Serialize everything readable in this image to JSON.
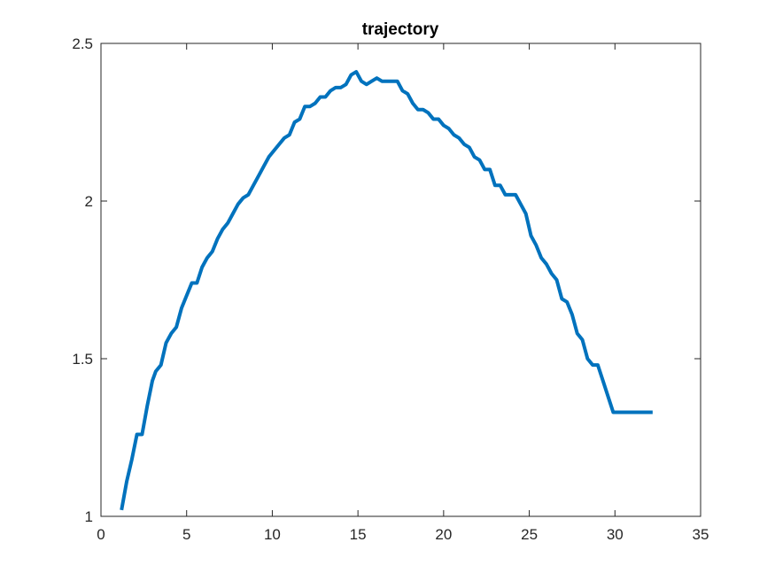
{
  "chart_data": {
    "type": "line",
    "title": "trajectory",
    "xlabel": "",
    "ylabel": "",
    "xlim": [
      0,
      35
    ],
    "ylim": [
      1,
      2.5
    ],
    "x_ticks": [
      "0",
      "5",
      "10",
      "15",
      "20",
      "25",
      "30",
      "35"
    ],
    "y_ticks": [
      "1",
      "1.5",
      "2",
      "2.5"
    ],
    "grid": false,
    "line_color": "#0072BD",
    "series": [
      {
        "x": [
          1.2,
          1.5,
          1.8,
          2.1,
          2.4,
          2.7,
          3.0,
          3.2,
          3.5,
          3.8,
          4.1,
          4.4,
          4.7,
          5.0,
          5.3,
          5.6,
          5.9,
          6.2,
          6.5,
          6.8,
          7.1,
          7.4,
          7.7,
          8.0,
          8.3,
          8.6,
          8.9,
          9.2,
          9.5,
          9.8,
          10.1,
          10.4,
          10.7,
          11.0,
          11.3,
          11.6,
          11.9,
          12.2,
          12.5,
          12.8,
          13.1,
          13.4,
          13.7,
          14.0,
          14.3,
          14.6,
          14.9,
          15.2,
          15.5,
          15.8,
          16.1,
          16.4,
          16.7,
          17.0,
          17.3,
          17.6,
          17.9,
          18.2,
          18.5,
          18.8,
          19.1,
          19.4,
          19.7,
          20.0,
          20.3,
          20.6,
          20.9,
          21.2,
          21.5,
          21.8,
          22.1,
          22.4,
          22.7,
          23.0,
          23.3,
          23.6,
          23.9,
          24.2,
          24.5,
          24.8,
          25.1,
          25.4,
          25.7,
          26.0,
          26.3,
          26.6,
          26.9,
          27.2,
          27.5,
          27.8,
          28.1,
          28.4,
          28.7,
          29.0,
          29.3,
          29.6,
          29.9,
          30.2,
          30.5,
          30.8,
          31.1,
          31.4,
          31.7,
          32.0,
          32.2
        ],
        "y": [
          1.02,
          1.11,
          1.18,
          1.26,
          1.26,
          1.35,
          1.43,
          1.46,
          1.48,
          1.55,
          1.58,
          1.6,
          1.66,
          1.7,
          1.74,
          1.74,
          1.79,
          1.82,
          1.84,
          1.88,
          1.91,
          1.93,
          1.96,
          1.99,
          2.01,
          2.02,
          2.05,
          2.08,
          2.11,
          2.14,
          2.16,
          2.18,
          2.2,
          2.21,
          2.25,
          2.26,
          2.3,
          2.3,
          2.31,
          2.33,
          2.33,
          2.35,
          2.36,
          2.36,
          2.37,
          2.4,
          2.41,
          2.38,
          2.37,
          2.38,
          2.39,
          2.38,
          2.38,
          2.38,
          2.38,
          2.35,
          2.34,
          2.31,
          2.29,
          2.29,
          2.28,
          2.26,
          2.26,
          2.24,
          2.23,
          2.21,
          2.2,
          2.18,
          2.17,
          2.14,
          2.13,
          2.1,
          2.1,
          2.05,
          2.05,
          2.02,
          2.02,
          2.02,
          1.99,
          1.96,
          1.89,
          1.86,
          1.82,
          1.8,
          1.77,
          1.75,
          1.69,
          1.68,
          1.64,
          1.58,
          1.56,
          1.5,
          1.48,
          1.48,
          1.43,
          1.38,
          1.33,
          1.33,
          1.33,
          1.33,
          1.33,
          1.33,
          1.33,
          1.33,
          1.33
        ]
      }
    ]
  }
}
